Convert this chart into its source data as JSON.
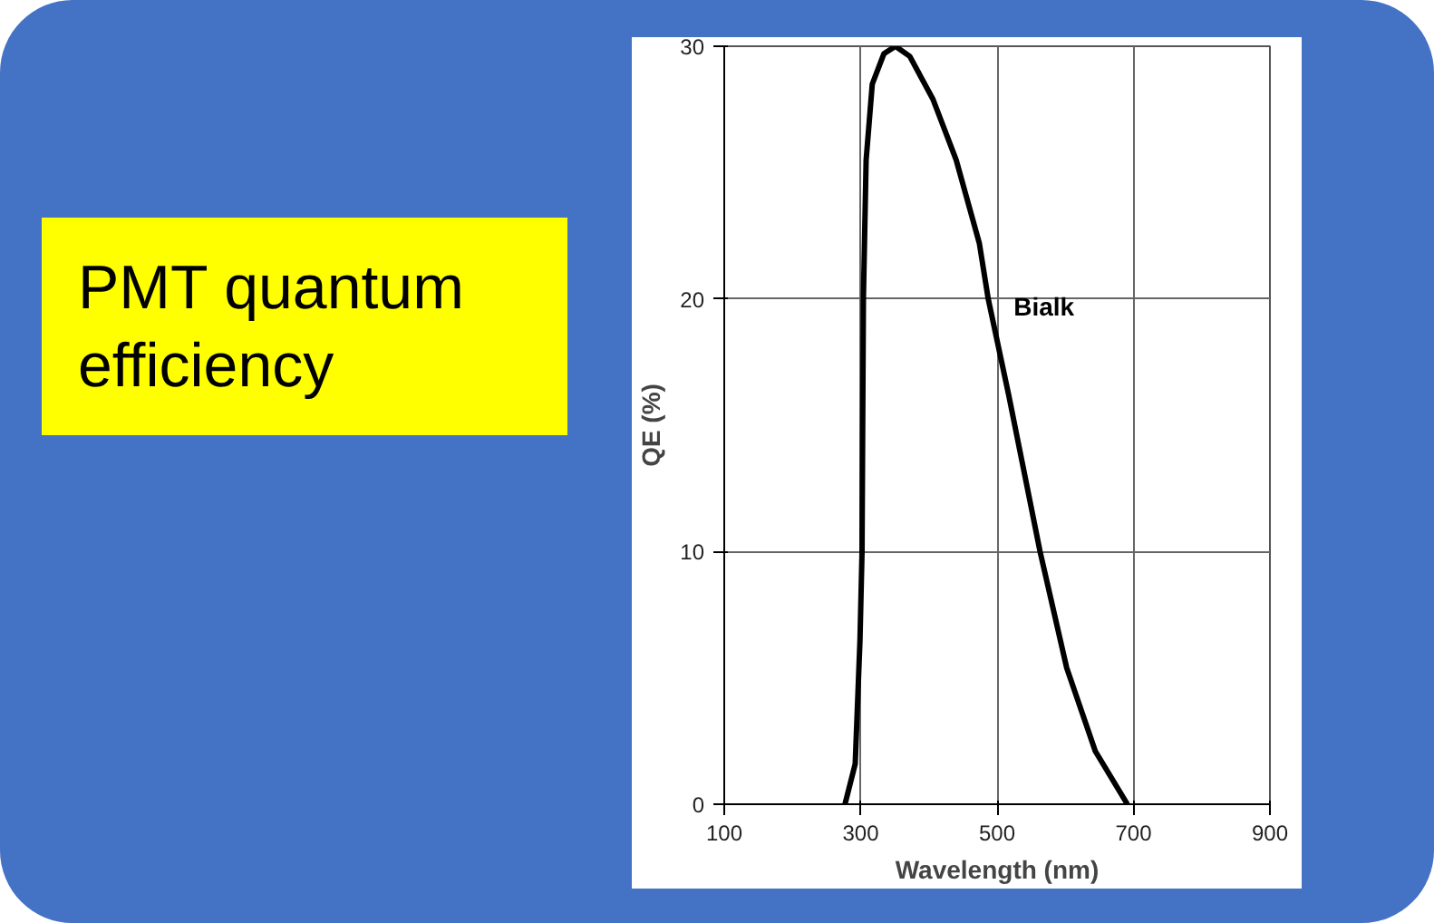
{
  "chart_data": {
    "type": "line",
    "title": "PMT quantum efficiency",
    "xlabel": "Wavelength (nm)",
    "ylabel": "QE (%)",
    "x": [
      277,
      292,
      299,
      302,
      304,
      308,
      317,
      334,
      351,
      372,
      406,
      440,
      474,
      487,
      517,
      563,
      602,
      644,
      691
    ],
    "series": [
      {
        "name": "Bialk",
        "color": "#000000",
        "values": [
          0,
          1.6,
          6.5,
          10,
          20,
          25.5,
          28.5,
          29.7,
          30,
          29.6,
          27.9,
          25.5,
          22.2,
          20,
          16.2,
          10,
          5.4,
          2.1,
          0
        ]
      }
    ],
    "xlim": [
      100,
      900
    ],
    "xticks": [
      100,
      300,
      500,
      700,
      900
    ],
    "ylim": [
      0,
      30
    ],
    "yticks": [
      0,
      10,
      20,
      30
    ],
    "grid": true
  }
}
